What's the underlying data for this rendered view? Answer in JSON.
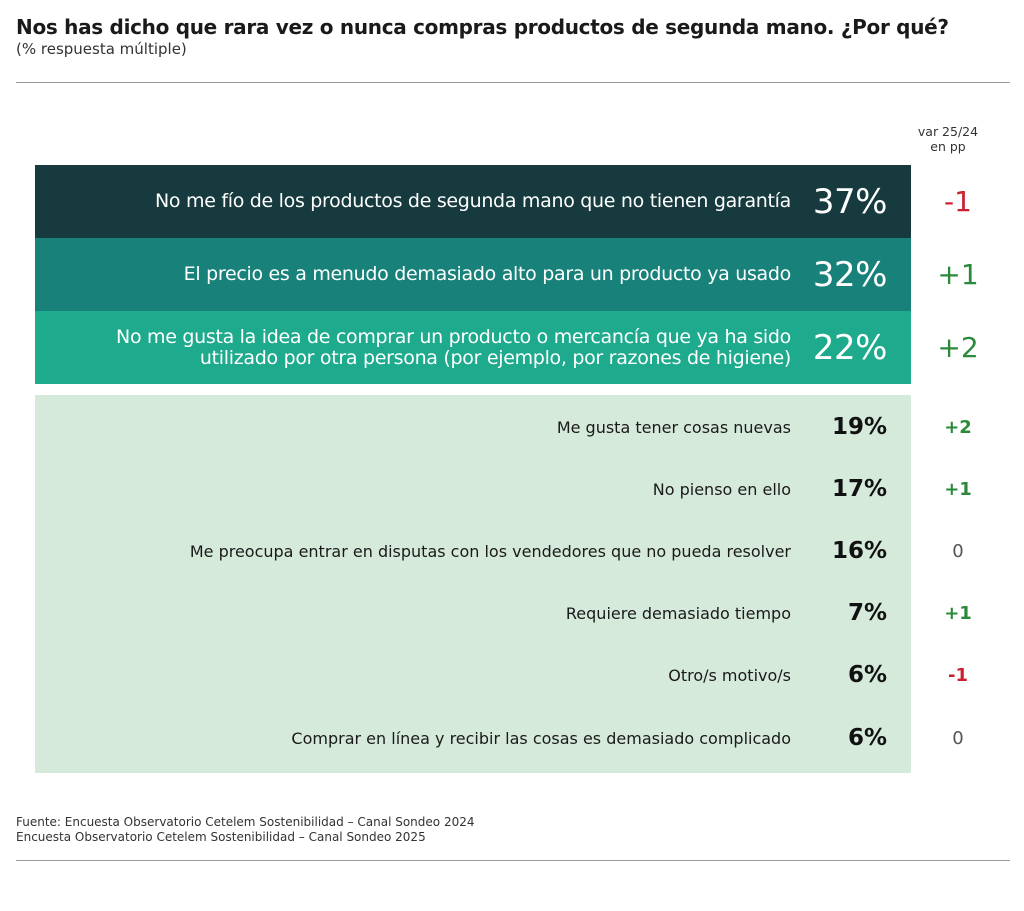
{
  "title": "Nos has dicho que rara vez o nunca compras productos de segunda mano. ¿Por qué?",
  "subtitle": "(% respuesta múltiple)",
  "var_header_line1": "var 25/24",
  "var_header_line2": "en pp",
  "source_line1": "Fuente: Encuesta Observatorio Cetelem Sostenibilidad – Canal Sondeo 2024",
  "source_line2": "Encuesta Observatorio Cetelem Sostenibilidad – Canal Sondeo 2025",
  "colors": {
    "top1_bg": "#163a3e",
    "top2_bg": "#18827a",
    "top3_bg": "#1eaa8c",
    "lower_bg": "#d5eadb",
    "negative": "#cc1f2f",
    "positive": "#2a8a3a",
    "neutral": "#555555"
  },
  "chart_data": {
    "type": "table",
    "columns": [
      "",
      "",
      "var 25/24 en pp"
    ],
    "rows": [
      {
        "label": "No me fío de los productos de segunda mano que no tienen garantía",
        "value": 37,
        "value_label": "37%",
        "change": -1,
        "change_label": "-1"
      },
      {
        "label": "El precio es a menudo demasiado alto para un producto ya usado",
        "value": 32,
        "value_label": "32%",
        "change": 1,
        "change_label": "+1"
      },
      {
        "label_line1": "No me gusta la idea de comprar un producto o mercancía que ya ha sido",
        "label_line2": "utilizado por otra persona (por ejemplo, por razones de higiene)",
        "value": 22,
        "value_label": "22%",
        "change": 2,
        "change_label": "+2"
      },
      {
        "label": "Me gusta tener cosas nuevas",
        "value": 19,
        "value_label": "19%",
        "change": 2,
        "change_label": "+2"
      },
      {
        "label": "No pienso en ello",
        "value": 17,
        "value_label": "17%",
        "change": 1,
        "change_label": "+1"
      },
      {
        "label": "Me preocupa entrar en disputas con los vendedores que no pueda resolver",
        "value": 16,
        "value_label": "16%",
        "change": 0,
        "change_label": "0"
      },
      {
        "label": "Requiere demasiado tiempo",
        "value": 7,
        "value_label": "7%",
        "change": 1,
        "change_label": "+1"
      },
      {
        "label": "Otro/s motivo/s",
        "value": 6,
        "value_label": "6%",
        "change": -1,
        "change_label": "-1"
      },
      {
        "label": "Comprar en línea y recibir las cosas es demasiado complicado",
        "value": 6,
        "value_label": "6%",
        "change": 0,
        "change_label": "0"
      }
    ]
  }
}
